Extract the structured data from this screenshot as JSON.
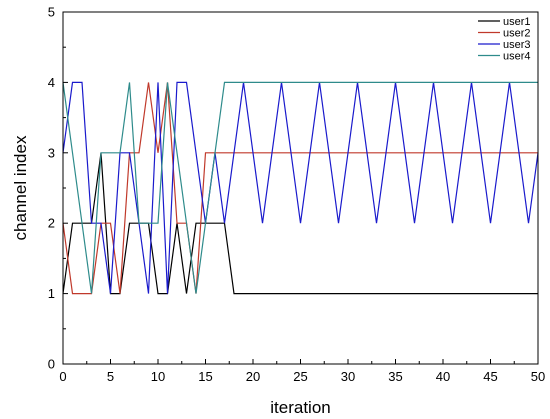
{
  "chart_data": {
    "type": "line",
    "title": "",
    "xlabel": "iteration",
    "ylabel": "channel index",
    "xlim": [
      0,
      50
    ],
    "ylim": [
      0,
      5
    ],
    "xticks": [
      0,
      5,
      10,
      15,
      20,
      25,
      30,
      35,
      40,
      45,
      50
    ],
    "yticks": [
      0,
      1,
      2,
      3,
      4,
      5
    ],
    "grid": false,
    "legend_position": "top-right",
    "series": [
      {
        "name": "user1",
        "color": "#000000",
        "x": [
          0,
          1,
          3,
          4,
          5,
          6,
          7,
          9,
          10,
          11,
          12,
          13,
          14,
          15,
          16,
          17,
          18,
          50
        ],
        "y": [
          1,
          2,
          2,
          3,
          1,
          1,
          2,
          2,
          1,
          1,
          2,
          1,
          2,
          2,
          2,
          2,
          1,
          1
        ]
      },
      {
        "name": "user2",
        "color": "#c0392b",
        "x": [
          0,
          1,
          2,
          3,
          4,
          5,
          6,
          7,
          8,
          9,
          10,
          11,
          12,
          13,
          14,
          15,
          50
        ],
        "y": [
          2,
          1,
          1,
          1,
          2,
          2,
          1,
          3,
          3,
          4,
          3,
          4,
          2,
          2,
          1,
          3,
          3
        ]
      },
      {
        "name": "user3",
        "color": "#1a1acc",
        "x": [
          0,
          1,
          2,
          3,
          4,
          5,
          6,
          7,
          8,
          9,
          10,
          11,
          12,
          13,
          14,
          15,
          16,
          17,
          19,
          21,
          23,
          25,
          27,
          29,
          31,
          33,
          35,
          37,
          39,
          41,
          43,
          45,
          47,
          49,
          50
        ],
        "y": [
          3,
          4,
          4,
          2,
          2,
          1,
          3,
          3,
          2,
          1,
          4,
          1,
          4,
          4,
          3,
          2,
          3,
          2,
          4,
          2,
          4,
          2,
          4,
          2,
          4,
          2,
          4,
          2,
          4,
          2,
          4,
          2,
          4,
          2,
          3
        ]
      },
      {
        "name": "user4",
        "color": "#2e8b8b",
        "x": [
          0,
          1,
          2,
          3,
          4,
          5,
          6,
          7,
          8,
          9,
          10,
          11,
          12,
          13,
          14,
          15,
          16,
          17,
          50
        ],
        "y": [
          4,
          3,
          2,
          1,
          3,
          3,
          3,
          4,
          2,
          2,
          2,
          4,
          3,
          2,
          1,
          2,
          3,
          4,
          4
        ]
      }
    ]
  }
}
